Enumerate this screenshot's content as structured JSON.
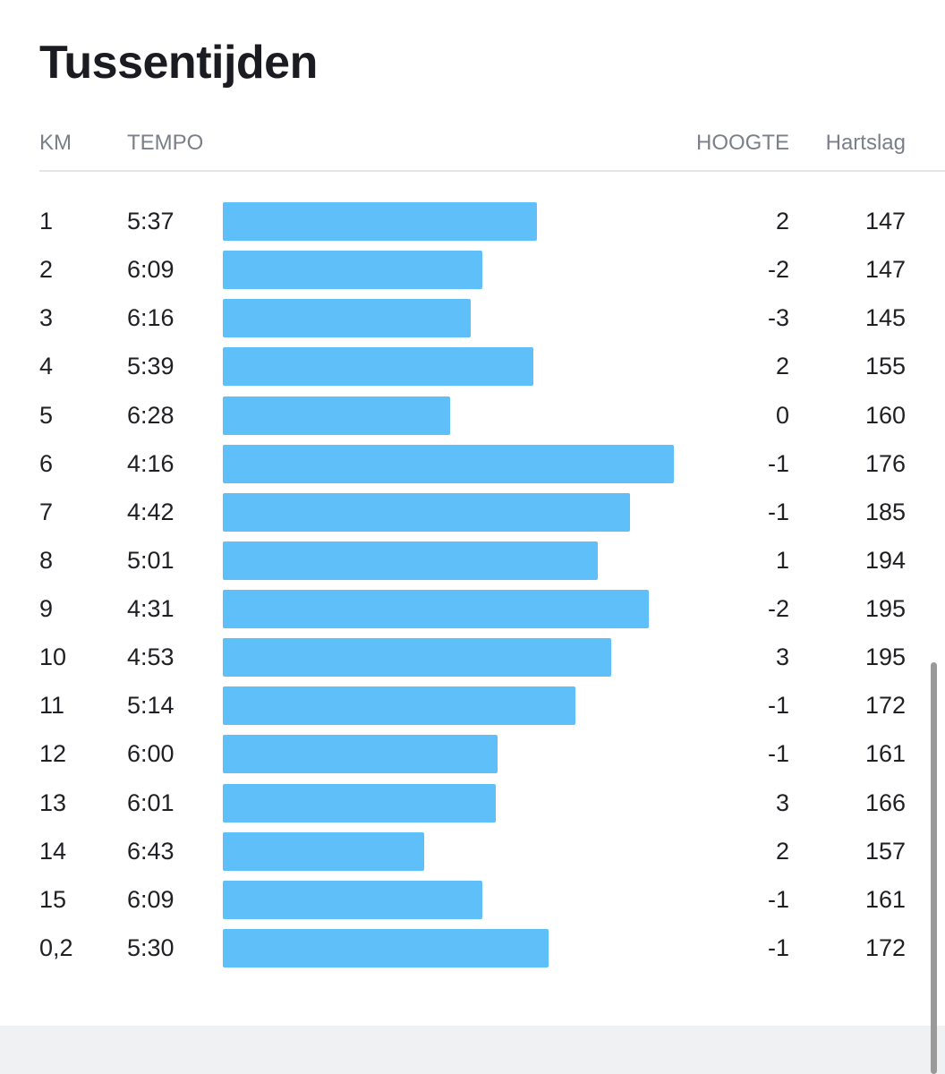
{
  "title": "Tussentijden",
  "columns": {
    "km": "KM",
    "tempo": "TEMPO",
    "hoogte": "HOOGTE",
    "hartslag": "Hartslag"
  },
  "colors": {
    "bar": "#5ebff9",
    "text": "#1f1f24",
    "header": "#7a7f88"
  },
  "splits": [
    {
      "km": "1",
      "tempo": "5:37",
      "hoogte": "2",
      "hartslag": "147"
    },
    {
      "km": "2",
      "tempo": "6:09",
      "hoogte": "-2",
      "hartslag": "147"
    },
    {
      "km": "3",
      "tempo": "6:16",
      "hoogte": "-3",
      "hartslag": "145"
    },
    {
      "km": "4",
      "tempo": "5:39",
      "hoogte": "2",
      "hartslag": "155"
    },
    {
      "km": "5",
      "tempo": "6:28",
      "hoogte": "0",
      "hartslag": "160"
    },
    {
      "km": "6",
      "tempo": "4:16",
      "hoogte": "-1",
      "hartslag": "176"
    },
    {
      "km": "7",
      "tempo": "4:42",
      "hoogte": "-1",
      "hartslag": "185"
    },
    {
      "km": "8",
      "tempo": "5:01",
      "hoogte": "1",
      "hartslag": "194"
    },
    {
      "km": "9",
      "tempo": "4:31",
      "hoogte": "-2",
      "hartslag": "195"
    },
    {
      "km": "10",
      "tempo": "4:53",
      "hoogte": "3",
      "hartslag": "195"
    },
    {
      "km": "11",
      "tempo": "5:14",
      "hoogte": "-1",
      "hartslag": "172"
    },
    {
      "km": "12",
      "tempo": "6:00",
      "hoogte": "-1",
      "hartslag": "161"
    },
    {
      "km": "13",
      "tempo": "6:01",
      "hoogte": "3",
      "hartslag": "166"
    },
    {
      "km": "14",
      "tempo": "6:43",
      "hoogte": "2",
      "hartslag": "157"
    },
    {
      "km": "15",
      "tempo": "6:09",
      "hoogte": "-1",
      "hartslag": "161"
    },
    {
      "km": "0,2",
      "tempo": "5:30",
      "hoogte": "-1",
      "hartslag": "172"
    }
  ]
}
